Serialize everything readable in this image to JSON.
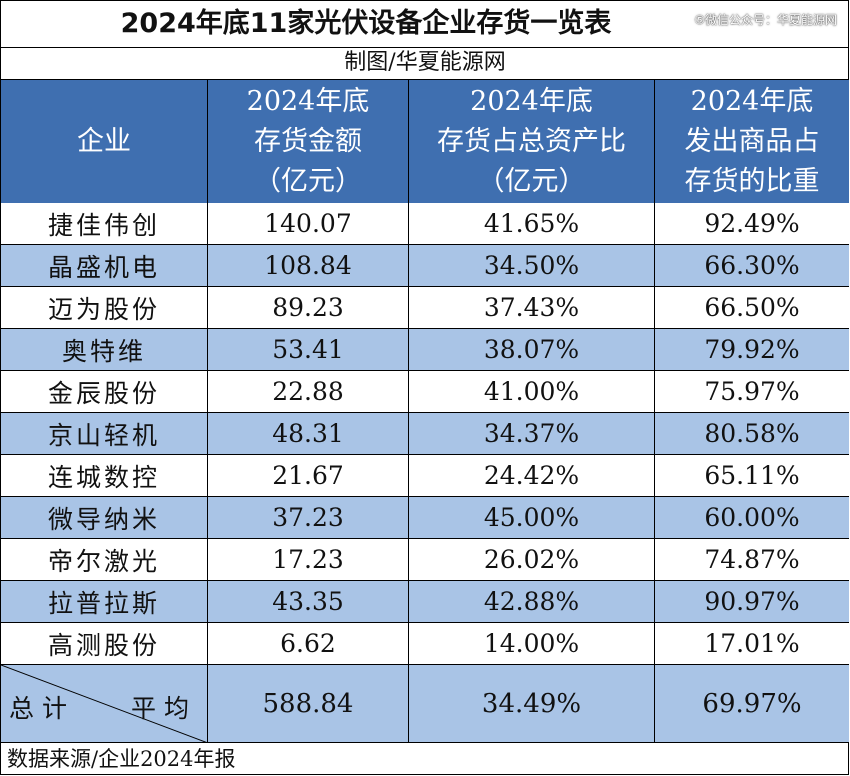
{
  "title": "2024年底11家光伏设备企业存货一览表",
  "watermark": "⑤微信公众号：华夏能源网",
  "subtitle": "制图/华夏能源网",
  "headers": {
    "company": "企业",
    "inventory": "2024年底\n存货金额\n（亿元）",
    "ratio": "2024年底\n存货占总资产比\n（亿元）",
    "shipped": "2024年底\n发出商品占\n存货的比重"
  },
  "rows": [
    {
      "company": "捷佳伟创",
      "inventory": "140.07",
      "ratio": "41.65%",
      "shipped": "92.49%"
    },
    {
      "company": "晶盛机电",
      "inventory": "108.84",
      "ratio": "34.50%",
      "shipped": "66.30%"
    },
    {
      "company": "迈为股份",
      "inventory": "89.23",
      "ratio": "37.43%",
      "shipped": "66.50%"
    },
    {
      "company": "奥特维",
      "inventory": "53.41",
      "ratio": "38.07%",
      "shipped": "79.92%"
    },
    {
      "company": "金辰股份",
      "inventory": "22.88",
      "ratio": "41.00%",
      "shipped": "75.97%"
    },
    {
      "company": "京山轻机",
      "inventory": "48.31",
      "ratio": "34.37%",
      "shipped": "80.58%"
    },
    {
      "company": "连城数控",
      "inventory": "21.67",
      "ratio": "24.42%",
      "shipped": "65.11%"
    },
    {
      "company": "微导纳米",
      "inventory": "37.23",
      "ratio": "45.00%",
      "shipped": "60.00%"
    },
    {
      "company": "帝尔激光",
      "inventory": "17.23",
      "ratio": "26.02%",
      "shipped": "74.87%"
    },
    {
      "company": "拉普拉斯",
      "inventory": "43.35",
      "ratio": "42.88%",
      "shipped": "90.97%"
    },
    {
      "company": "高测股份",
      "inventory": "6.62",
      "ratio": "14.00%",
      "shipped": "17.01%"
    }
  ],
  "total": {
    "label_total": "总计",
    "label_avg": "平均",
    "inventory": "588.84",
    "ratio": "34.49%",
    "shipped": "69.97%"
  },
  "footer": "数据来源/企业2024年报",
  "colors": {
    "header_bg": "#3f6fb0",
    "stripe_bg": "#a9c4e6",
    "row_bg": "#ffffff"
  }
}
